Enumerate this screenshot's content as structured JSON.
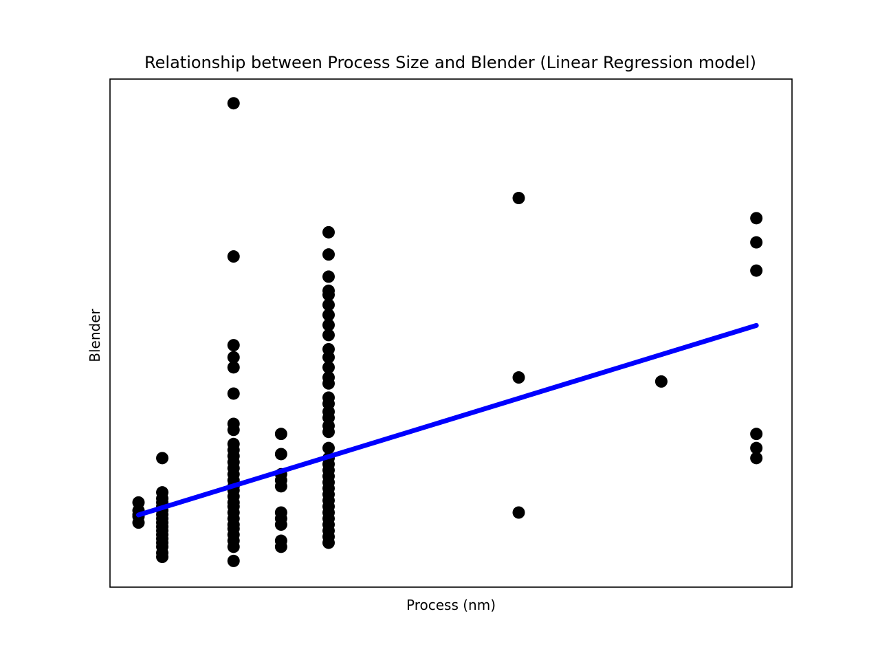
{
  "chart_data": {
    "type": "scatter",
    "title": "Relationship between Process Size and Blender (Linear Regression model)",
    "xlabel": "Process (nm)",
    "ylabel": "Blender",
    "xlim": [
      1.8,
      30.5
    ],
    "ylim": [
      -0.6,
      24.6
    ],
    "x_ticks_shown": false,
    "y_ticks_shown": false,
    "grid": false,
    "colors": {
      "points": "#000000",
      "fit_line": "#0000ff",
      "axes": "#000000",
      "background": "#ffffff"
    },
    "series": [
      {
        "type": "scatter",
        "points": [
          [
            3,
            2.6
          ],
          [
            3,
            2.9
          ],
          [
            3,
            3.0
          ],
          [
            3,
            3.2
          ],
          [
            3,
            3.6
          ],
          [
            4,
            0.9
          ],
          [
            4,
            1.1
          ],
          [
            4,
            1.4
          ],
          [
            4,
            1.6
          ],
          [
            4,
            1.8
          ],
          [
            4,
            2.0
          ],
          [
            4,
            2.2
          ],
          [
            4,
            2.4
          ],
          [
            4,
            2.6
          ],
          [
            4,
            2.8
          ],
          [
            4,
            3.0
          ],
          [
            4,
            3.2
          ],
          [
            4,
            3.4
          ],
          [
            4,
            3.6
          ],
          [
            4,
            3.8
          ],
          [
            4,
            4.1
          ],
          [
            4,
            5.8
          ],
          [
            7,
            0.7
          ],
          [
            7,
            1.4
          ],
          [
            7,
            1.7
          ],
          [
            7,
            2.0
          ],
          [
            7,
            2.3
          ],
          [
            7,
            2.5
          ],
          [
            7,
            2.8
          ],
          [
            7,
            3.1
          ],
          [
            7,
            3.4
          ],
          [
            7,
            3.6
          ],
          [
            7,
            3.9
          ],
          [
            7,
            4.2
          ],
          [
            7,
            4.4
          ],
          [
            7,
            4.7
          ],
          [
            7,
            5.0
          ],
          [
            7,
            5.3
          ],
          [
            7,
            5.6
          ],
          [
            7,
            5.9
          ],
          [
            7,
            6.2
          ],
          [
            7,
            6.5
          ],
          [
            7,
            7.2
          ],
          [
            7,
            7.5
          ],
          [
            7,
            9.0
          ],
          [
            7,
            10.3
          ],
          [
            7,
            10.8
          ],
          [
            7,
            11.4
          ],
          [
            7,
            15.8
          ],
          [
            7,
            23.4
          ],
          [
            9,
            1.4
          ],
          [
            9,
            1.7
          ],
          [
            9,
            2.5
          ],
          [
            9,
            2.8
          ],
          [
            9,
            3.1
          ],
          [
            9,
            4.4
          ],
          [
            9,
            4.7
          ],
          [
            9,
            5.0
          ],
          [
            9,
            6.0
          ],
          [
            9,
            7.0
          ],
          [
            11,
            1.6
          ],
          [
            11,
            1.9
          ],
          [
            11,
            2.2
          ],
          [
            11,
            2.5
          ],
          [
            11,
            2.8
          ],
          [
            11,
            3.1
          ],
          [
            11,
            3.4
          ],
          [
            11,
            3.7
          ],
          [
            11,
            4.0
          ],
          [
            11,
            4.3
          ],
          [
            11,
            4.6
          ],
          [
            11,
            4.9
          ],
          [
            11,
            5.2
          ],
          [
            11,
            5.5
          ],
          [
            11,
            5.8
          ],
          [
            11,
            6.3
          ],
          [
            11,
            7.1
          ],
          [
            11,
            7.4
          ],
          [
            11,
            7.8
          ],
          [
            11,
            8.1
          ],
          [
            11,
            8.5
          ],
          [
            11,
            8.8
          ],
          [
            11,
            9.5
          ],
          [
            11,
            9.8
          ],
          [
            11,
            10.3
          ],
          [
            11,
            10.8
          ],
          [
            11,
            11.2
          ],
          [
            11,
            11.9
          ],
          [
            11,
            12.4
          ],
          [
            11,
            12.9
          ],
          [
            11,
            13.4
          ],
          [
            11,
            13.9
          ],
          [
            11,
            14.1
          ],
          [
            11,
            14.8
          ],
          [
            11,
            15.9
          ],
          [
            11,
            17.0
          ],
          [
            19,
            3.1
          ],
          [
            19,
            9.8
          ],
          [
            19,
            18.7
          ],
          [
            25,
            9.6
          ],
          [
            29,
            5.8
          ],
          [
            29,
            6.3
          ],
          [
            29,
            7.0
          ],
          [
            29,
            15.1
          ],
          [
            29,
            16.5
          ],
          [
            29,
            17.7
          ]
        ]
      },
      {
        "type": "line",
        "points": [
          [
            3,
            2.98
          ],
          [
            29,
            12.38
          ]
        ]
      }
    ]
  }
}
